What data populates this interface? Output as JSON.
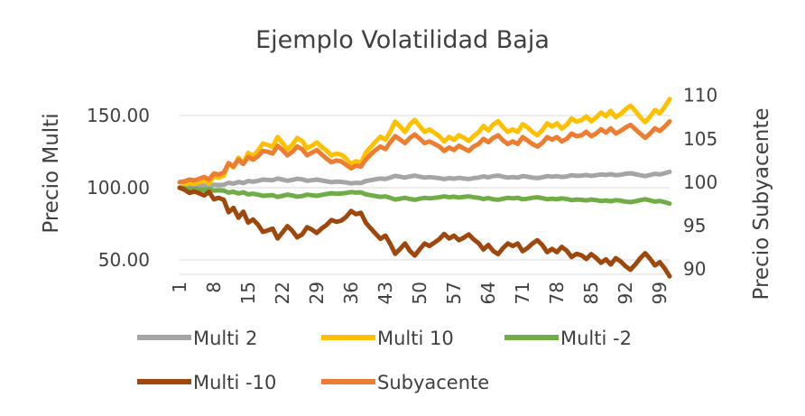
{
  "chart_data": {
    "type": "line",
    "title": "Ejemplo Volatilidad Baja",
    "ylabel": "Precio Multi",
    "y2label": "Precio Subyacente",
    "xlabel": "",
    "x": [
      1,
      2,
      3,
      4,
      5,
      6,
      7,
      8,
      9,
      10,
      11,
      12,
      13,
      14,
      15,
      16,
      17,
      18,
      19,
      20,
      21,
      22,
      23,
      24,
      25,
      26,
      27,
      28,
      29,
      30,
      31,
      32,
      33,
      34,
      35,
      36,
      37,
      38,
      39,
      40,
      41,
      42,
      43,
      44,
      45,
      46,
      47,
      48,
      49,
      50,
      51,
      52,
      53,
      54,
      55,
      56,
      57,
      58,
      59,
      60,
      61,
      62,
      63,
      64,
      65,
      66,
      67,
      68,
      69,
      70,
      71,
      72,
      73,
      74,
      75,
      76,
      77,
      78,
      79,
      80,
      81,
      82,
      83,
      84,
      85,
      86,
      87,
      88,
      89,
      90,
      91,
      92,
      93,
      94,
      95,
      96,
      97,
      98,
      99,
      100,
      101
    ],
    "xticks": [
      1,
      8,
      15,
      22,
      29,
      36,
      43,
      50,
      57,
      64,
      71,
      78,
      85,
      92,
      99
    ],
    "xtick_labels": [
      "1",
      "8",
      "15",
      "22",
      "29",
      "36",
      "43",
      "50",
      "57",
      "64",
      "71",
      "78",
      "85",
      "92",
      "99"
    ],
    "ylim": [
      40,
      170
    ],
    "yticks": [
      50,
      100,
      150
    ],
    "ytick_labels": [
      "50.00",
      "100.00",
      "150.00"
    ],
    "y2lim": [
      89.4,
      111.0
    ],
    "y2ticks": [
      90,
      95,
      100,
      105,
      110
    ],
    "y2tick_labels": [
      "90",
      "95",
      "100",
      "105",
      "110"
    ],
    "grid": true,
    "legend_position": "bottom",
    "series": [
      {
        "name": "Multi 2",
        "axis": "left",
        "color": "#a5a5a5",
        "values": [
          100.0,
          100.4,
          101.0,
          100.8,
          101.2,
          101.6,
          101.0,
          102.0,
          101.8,
          102.0,
          103.4,
          102.8,
          104.0,
          103.2,
          104.6,
          104.2,
          104.8,
          105.6,
          105.4,
          105.2,
          106.4,
          105.6,
          104.8,
          105.4,
          106.2,
          105.8,
          104.8,
          105.2,
          105.6,
          105.0,
          104.4,
          103.8,
          104.2,
          104.0,
          103.6,
          103.0,
          103.4,
          103.2,
          104.6,
          105.2,
          105.8,
          106.4,
          106.0,
          107.0,
          108.2,
          107.6,
          107.0,
          107.8,
          108.4,
          107.6,
          107.0,
          107.4,
          107.0,
          106.6,
          106.0,
          106.6,
          106.2,
          106.8,
          106.4,
          106.0,
          106.6,
          107.0,
          107.8,
          107.2,
          108.0,
          108.4,
          107.6,
          107.0,
          107.4,
          107.0,
          108.0,
          107.6,
          107.0,
          106.6,
          107.2,
          108.0,
          107.6,
          108.0,
          107.4,
          107.8,
          108.6,
          108.2,
          108.4,
          108.8,
          108.2,
          108.6,
          109.2,
          108.8,
          109.4,
          108.6,
          109.0,
          109.6,
          110.0,
          109.4,
          108.6,
          108.0,
          108.8,
          109.6,
          109.2,
          110.0,
          111.0
        ]
      },
      {
        "name": "Multi 10",
        "axis": "left",
        "color": "#ffc000",
        "values": [
          100.0,
          101.4,
          103.6,
          102.6,
          103.8,
          105.4,
          102.8,
          108.0,
          107.0,
          108.4,
          117.0,
          114.0,
          120.8,
          116.6,
          124.2,
          122.0,
          125.6,
          130.6,
          129.6,
          128.4,
          135.2,
          131.0,
          126.6,
          129.8,
          134.4,
          132.4,
          127.4,
          129.0,
          131.4,
          128.2,
          125.8,
          122.4,
          123.6,
          122.8,
          120.2,
          116.2,
          118.4,
          117.4,
          124.2,
          128.2,
          131.8,
          135.4,
          133.2,
          139.0,
          145.8,
          142.4,
          138.6,
          143.8,
          147.0,
          142.6,
          138.6,
          140.4,
          138.0,
          135.6,
          132.0,
          135.2,
          133.2,
          136.4,
          134.6,
          132.4,
          135.8,
          138.4,
          142.8,
          139.6,
          143.8,
          146.0,
          141.8,
          138.6,
          140.4,
          138.6,
          144.0,
          141.8,
          138.6,
          136.4,
          139.6,
          144.6,
          142.4,
          144.6,
          141.0,
          143.6,
          148.0,
          145.8,
          146.8,
          149.4,
          146.0,
          148.6,
          152.0,
          149.6,
          153.2,
          148.8,
          151.0,
          154.4,
          156.8,
          153.2,
          148.8,
          145.4,
          149.2,
          153.8,
          151.6,
          156.0,
          161.4
        ]
      },
      {
        "name": "Multi -2",
        "axis": "left",
        "color": "#70ad47",
        "values": [
          100.0,
          99.6,
          99.0,
          99.2,
          98.8,
          98.4,
          99.0,
          98.0,
          98.2,
          98.0,
          96.6,
          97.2,
          96.0,
          96.8,
          95.4,
          95.8,
          95.2,
          94.4,
          94.6,
          94.8,
          93.6,
          94.4,
          95.2,
          94.6,
          93.8,
          94.2,
          95.2,
          94.8,
          94.4,
          95.0,
          95.6,
          96.2,
          95.8,
          96.0,
          96.4,
          97.0,
          96.6,
          96.8,
          95.4,
          94.8,
          94.2,
          93.6,
          94.0,
          93.0,
          91.8,
          92.4,
          93.0,
          92.2,
          91.6,
          92.4,
          93.0,
          92.6,
          93.0,
          93.4,
          94.0,
          93.4,
          93.8,
          93.2,
          93.6,
          94.0,
          93.4,
          93.0,
          92.2,
          92.8,
          92.0,
          91.6,
          92.4,
          93.0,
          92.6,
          93.0,
          92.0,
          92.4,
          93.0,
          93.4,
          92.8,
          92.0,
          92.4,
          92.0,
          92.6,
          92.2,
          91.4,
          91.8,
          91.6,
          91.2,
          91.8,
          91.4,
          90.8,
          91.2,
          90.6,
          91.4,
          91.0,
          90.4,
          90.0,
          90.6,
          91.4,
          92.0,
          91.2,
          90.4,
          90.8,
          90.0,
          89.0
        ]
      },
      {
        "name": "Multi -10",
        "axis": "left",
        "color": "#9e480e",
        "values": [
          100.0,
          98.6,
          96.4,
          97.4,
          96.2,
          94.6,
          97.2,
          92.0,
          93.0,
          91.6,
          83.0,
          86.0,
          79.2,
          83.4,
          75.8,
          78.0,
          74.4,
          69.4,
          70.4,
          71.6,
          64.8,
          69.0,
          73.4,
          70.2,
          65.6,
          67.6,
          72.6,
          71.0,
          68.6,
          71.8,
          74.2,
          77.6,
          76.4,
          77.2,
          79.8,
          83.8,
          81.6,
          82.6,
          75.8,
          71.8,
          68.2,
          64.6,
          66.8,
          61.0,
          54.2,
          57.6,
          61.4,
          56.2,
          53.0,
          57.4,
          61.4,
          59.6,
          62.0,
          64.4,
          68.0,
          64.8,
          66.8,
          63.6,
          65.4,
          67.6,
          64.2,
          61.6,
          57.2,
          60.4,
          56.2,
          54.0,
          58.2,
          61.4,
          59.6,
          61.4,
          56.0,
          58.2,
          61.4,
          63.6,
          60.4,
          55.4,
          57.6,
          55.4,
          59.0,
          56.4,
          52.0,
          54.2,
          53.2,
          50.6,
          54.0,
          51.4,
          48.0,
          50.4,
          46.8,
          51.2,
          49.0,
          45.6,
          43.2,
          46.8,
          51.2,
          54.6,
          50.8,
          46.2,
          48.4,
          44.0,
          38.6
        ]
      },
      {
        "name": "Subyacente",
        "axis": "right",
        "color": "#ed7d31",
        "values": [
          100.0,
          100.1,
          100.3,
          100.2,
          100.4,
          100.6,
          100.3,
          101.0,
          100.9,
          101.1,
          102.2,
          101.8,
          102.6,
          102.1,
          102.9,
          102.6,
          103.0,
          103.6,
          103.5,
          103.3,
          104.2,
          103.7,
          103.1,
          103.5,
          104.1,
          103.8,
          103.1,
          103.4,
          103.7,
          103.2,
          102.7,
          102.3,
          102.5,
          102.4,
          102.0,
          101.6,
          101.9,
          101.8,
          102.6,
          103.2,
          103.7,
          104.1,
          103.8,
          104.6,
          105.3,
          104.9,
          104.5,
          105.1,
          105.5,
          105.0,
          104.5,
          104.7,
          104.4,
          104.1,
          103.6,
          104.0,
          103.7,
          104.2,
          103.9,
          103.6,
          104.1,
          104.4,
          105.0,
          104.6,
          105.1,
          105.4,
          104.8,
          104.4,
          104.7,
          104.4,
          105.2,
          104.8,
          104.4,
          104.1,
          104.5,
          105.2,
          104.9,
          105.2,
          104.7,
          105.0,
          105.6,
          105.3,
          105.4,
          105.8,
          105.3,
          105.6,
          106.1,
          105.7,
          106.2,
          105.6,
          105.9,
          106.3,
          106.6,
          106.1,
          105.6,
          105.1,
          105.6,
          106.2,
          105.9,
          106.4,
          107.0
        ]
      }
    ]
  }
}
